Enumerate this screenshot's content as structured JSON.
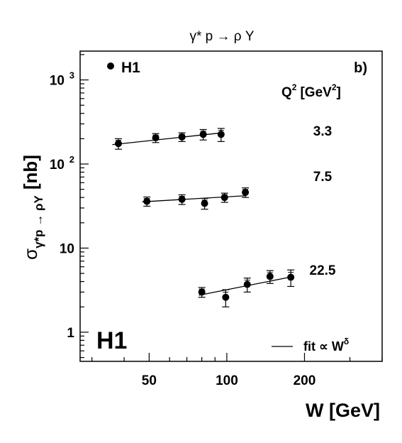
{
  "chart_data": {
    "type": "scatter",
    "title": "γ* p → ρ Y",
    "panel_label": "b)",
    "experiment_label": "H1",
    "legend": {
      "marker_label": "H1",
      "fit_label": "fit ∝ W",
      "fit_superscript": "δ"
    },
    "xlabel": "W [GeV]",
    "ylabel": {
      "sigma": "σ",
      "subscript": "γ*p → ρY",
      "unit": "[nb]"
    },
    "q2_header": {
      "base": "Q",
      "exp": "2",
      "unit_pre": "[GeV",
      "unit_exp": "2",
      "unit_post": "]"
    },
    "x_scale": "log",
    "y_scale": "log",
    "xlim": [
      27,
      400
    ],
    "ylim": [
      0.45,
      2200
    ],
    "x_ticks": [
      {
        "value": 50,
        "label": "50"
      },
      {
        "value": 100,
        "label": "100"
      },
      {
        "value": 200,
        "label": "200"
      }
    ],
    "y_ticks": [
      {
        "value": 1,
        "label": "1"
      },
      {
        "value": 10,
        "label": "10"
      },
      {
        "value": 100,
        "label": "10",
        "exp": "2"
      },
      {
        "value": 1000,
        "label": "10",
        "exp": "3"
      }
    ],
    "series": [
      {
        "q2_label": "3.3",
        "x": [
          38,
          53,
          67,
          81,
          95
        ],
        "y": [
          175,
          205,
          210,
          225,
          225
        ],
        "err": [
          25,
          25,
          25,
          32,
          40
        ],
        "fit": {
          "x": [
            36,
            96
          ],
          "y": [
            170,
            235
          ]
        }
      },
      {
        "q2_label": "7.5",
        "x": [
          49,
          67,
          82,
          98,
          118
        ],
        "y": [
          36,
          38,
          34,
          40,
          46
        ],
        "err": [
          4.5,
          5,
          5,
          5,
          6
        ],
        "fit": {
          "x": [
            47,
            119
          ],
          "y": [
            35.5,
            42
          ]
        }
      },
      {
        "q2_label": "22.5",
        "x": [
          80,
          99,
          120,
          147,
          177
        ],
        "y": [
          3.0,
          2.6,
          3.7,
          4.6,
          4.5
        ],
        "err": [
          0.4,
          0.6,
          0.7,
          0.8,
          1.0
        ],
        "fit": {
          "x": [
            78,
            178
          ],
          "y": [
            2.75,
            4.55
          ]
        }
      }
    ]
  }
}
